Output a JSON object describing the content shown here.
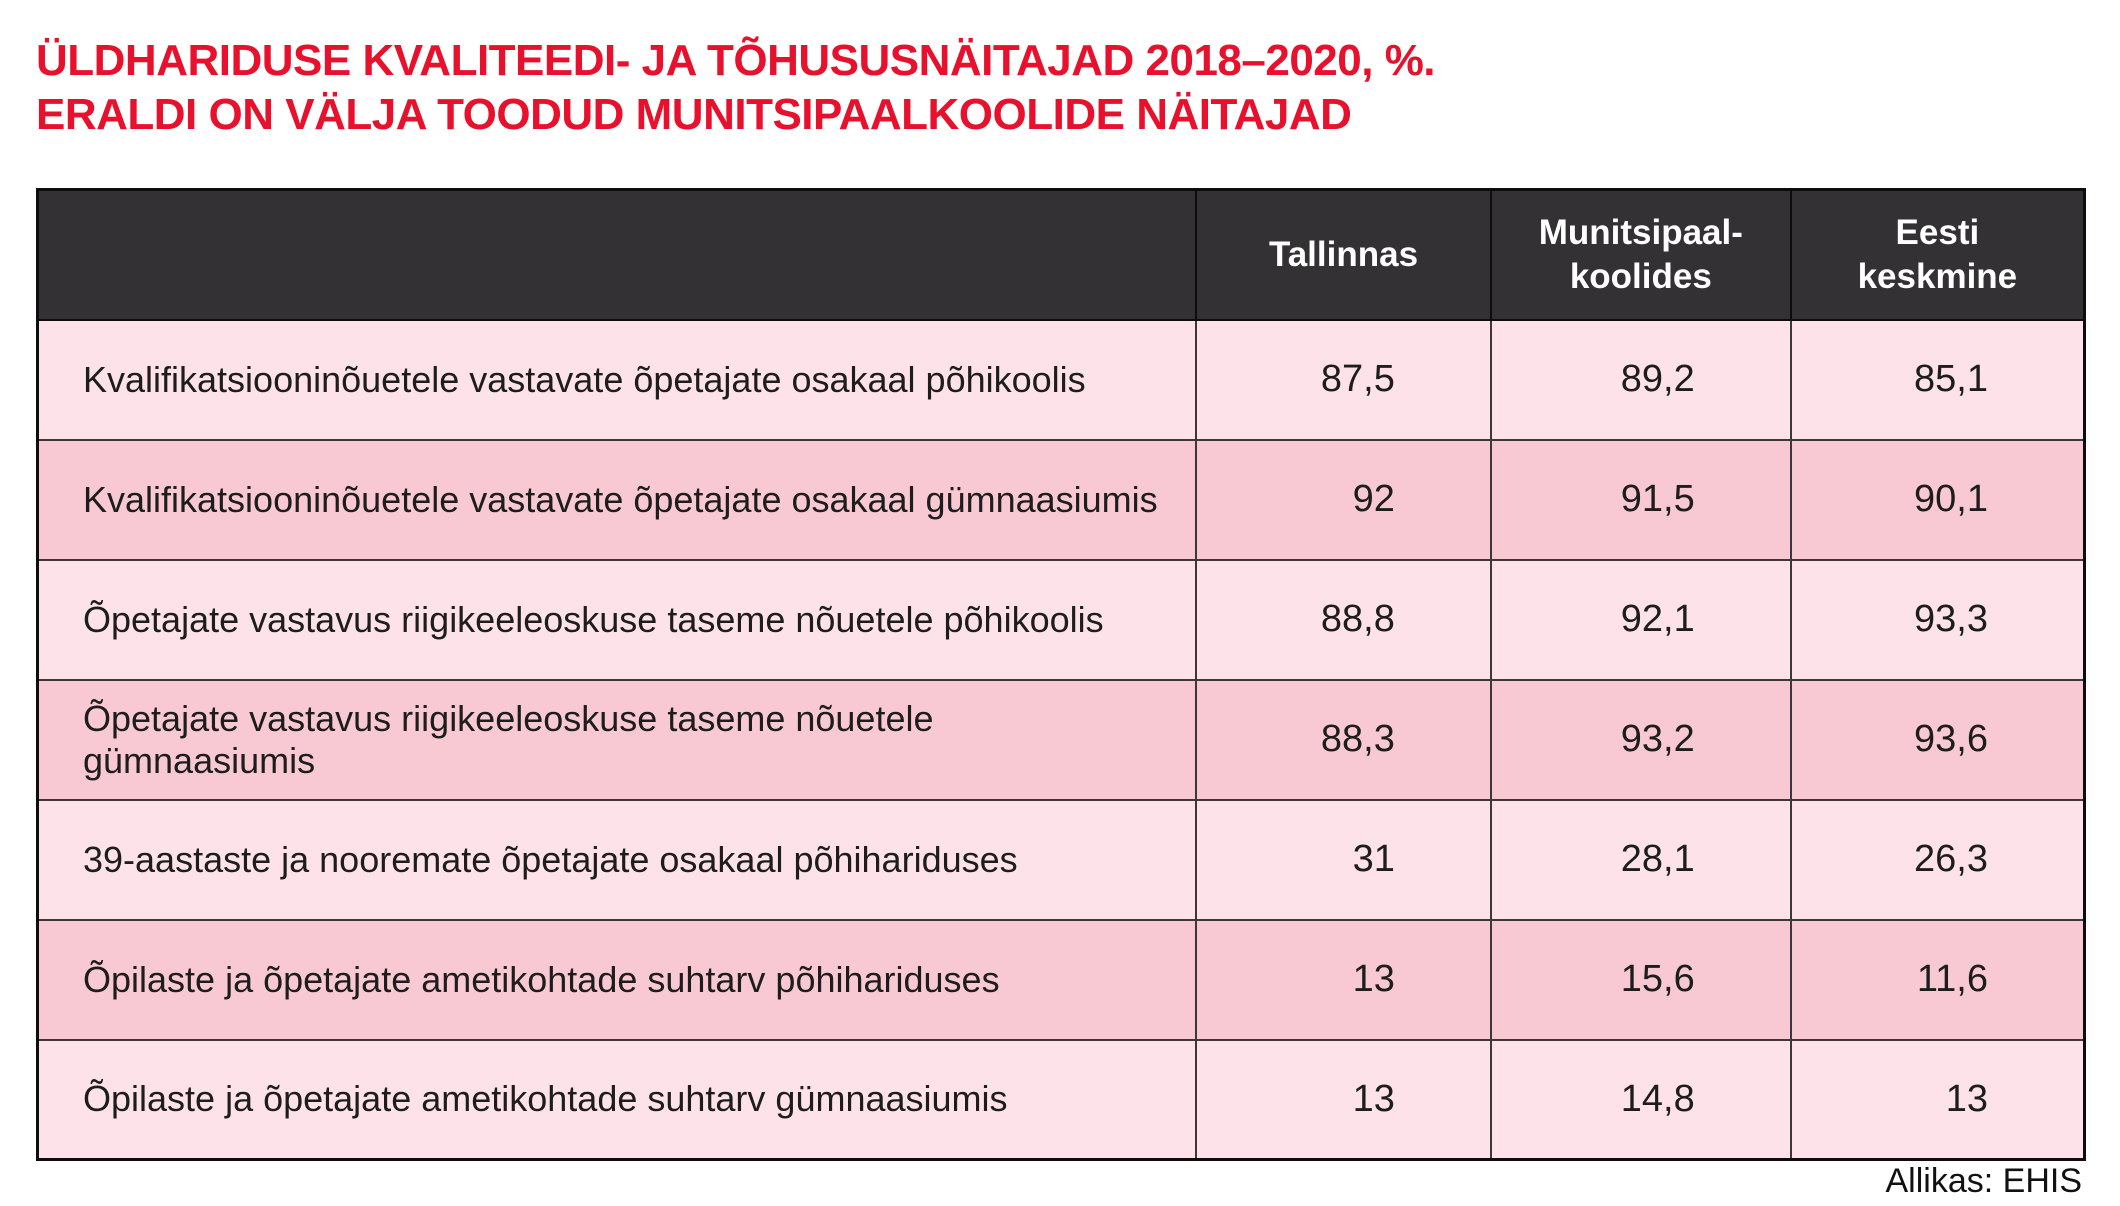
{
  "title": {
    "line1": "ÜLDHARIDUSE KVALITEEDI- JA TÕHUSUSNÄITAJAD 2018–2020, %.",
    "line2": "ERALDI ON VÄLJA TOODUD MUNITSIPAALKOOLIDE NÄITAJAD"
  },
  "table": {
    "header": {
      "label": "",
      "tallinnas": "Tallinnas",
      "munitsipaal": "Munitsipaal-\nkoolides",
      "eesti": "Eesti\nkeskmine"
    },
    "rows": [
      {
        "label": "Kvalifikatsiooninõuetele vastavate õpetajate osakaal põhikoolis",
        "values": [
          "87,5",
          "89,2",
          "85,1"
        ]
      },
      {
        "label": "Kvalifikatsiooninõuetele vastavate õpetajate osakaal gümnaasiumis",
        "values": [
          "92",
          "91,5",
          "90,1"
        ]
      },
      {
        "label": "Õpetajate vastavus riigikeeleoskuse taseme nõuetele põhikoolis",
        "values": [
          "88,8",
          "92,1",
          "93,3"
        ]
      },
      {
        "label": "Õpetajate vastavus riigikeeleoskuse taseme nõuetele gümnaasiumis",
        "values": [
          "88,3",
          "93,2",
          "93,6"
        ]
      },
      {
        "label": "39-aastaste ja nooremate õpetajate osakaal põhihariduses",
        "values": [
          "31",
          "28,1",
          "26,3"
        ]
      },
      {
        "label": "Õpilaste ja õpetajate ametikohtade suhtarv põhihariduses",
        "values": [
          "13",
          "15,6",
          "11,6"
        ]
      },
      {
        "label": "Õpilaste ja õpetajate ametikohtade suhtarv gümnaasiumis",
        "values": [
          "13",
          "14,8",
          "13"
        ]
      }
    ]
  },
  "footer": {
    "source": "Allikas: EHIS"
  },
  "colors": {
    "title_red": "#e8112d",
    "header_bg": "#333133",
    "row_light_pink": "#fde3e9",
    "row_dark_pink": "#f9c9d3",
    "cell_border": "#3c383a",
    "outer_border": "#0d0d0d",
    "text": "#1d1d1d"
  },
  "chart_data": {
    "type": "table",
    "title": "ÜLDHARIDUSE KVALITEEDI- JA TÕHUSUSNÄITAJAD 2018–2020, %. ERALDI ON VÄLJA TOODUD MUNITSIPAALKOOLIDE NÄITAJAD",
    "columns": [
      "Tallinnas",
      "Munitsipaalkoolides",
      "Eesti keskmine"
    ],
    "categories": [
      "Kvalifikatsiooninõuetele vastavate õpetajate osakaal põhikoolis",
      "Kvalifikatsiooninõuetele vastavate õpetajate osakaal gümnaasiumis",
      "Õpetajate vastavus riigikeeleoskuse taseme nõuetele põhikoolis",
      "Õpetajate vastavus riigikeeleoskuse taseme nõuetele gümnaasiumis",
      "39-aastaste ja nooremate õpetajate osakaal põhihariduses",
      "Õpilaste ja õpetajate ametikohtade suhtarv põhihariduses",
      "Õpilaste ja õpetajate ametikohtade suhtarv gümnaasiumis"
    ],
    "series": [
      {
        "name": "Tallinnas",
        "values": [
          87.5,
          92,
          88.8,
          88.3,
          31,
          13,
          13
        ]
      },
      {
        "name": "Munitsipaalkoolides",
        "values": [
          89.2,
          91.5,
          92.1,
          93.2,
          28.1,
          15.6,
          14.8
        ]
      },
      {
        "name": "Eesti keskmine",
        "values": [
          85.1,
          90.1,
          93.3,
          93.6,
          26.3,
          11.6,
          13
        ]
      }
    ],
    "source": "Allikas: EHIS"
  }
}
